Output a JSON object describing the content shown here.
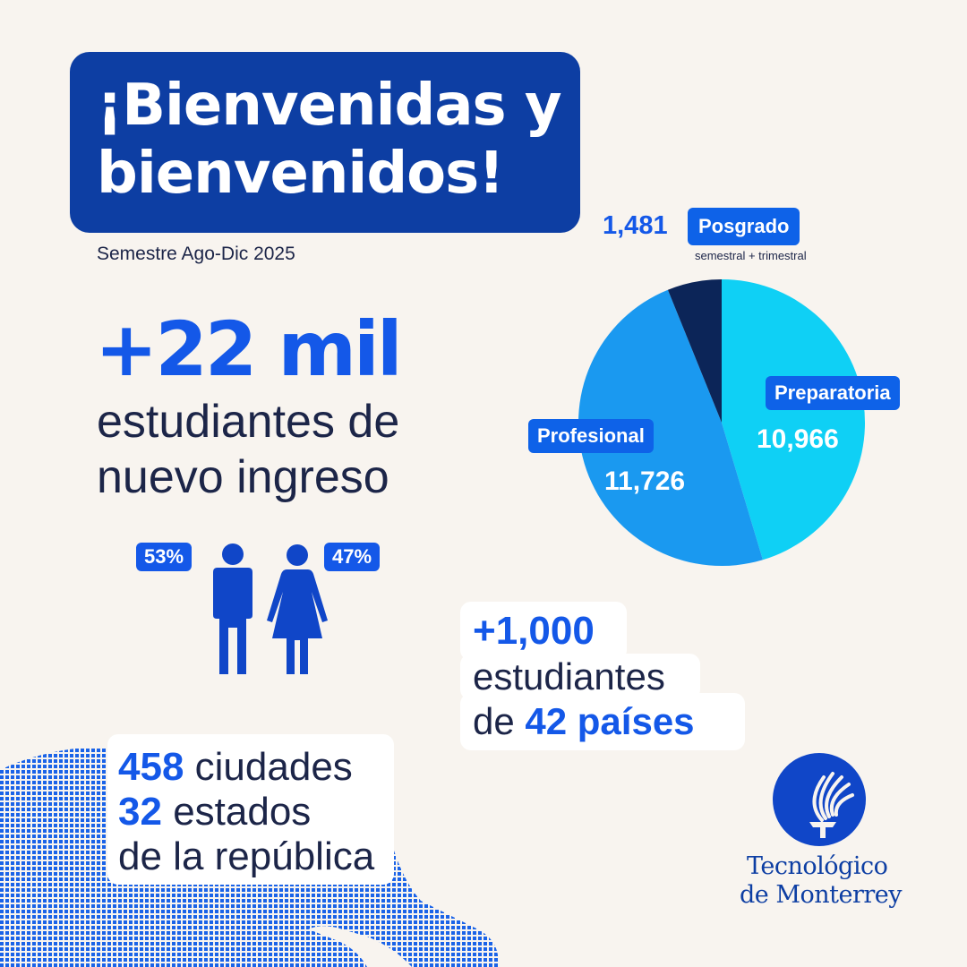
{
  "header": {
    "title_line1": "¡Bienvenidas y",
    "title_line2": "bienvenidos!",
    "subtitle": "Semestre Ago-Dic 2025"
  },
  "headline": {
    "number": "+22 mil",
    "desc_line1": "estudiantes de",
    "desc_line2": "nuevo ingreso"
  },
  "gender": {
    "men_pct": "53%",
    "women_pct": "47%",
    "men_icon": "man-icon",
    "women_icon": "woman-icon"
  },
  "pie": {
    "posgrado_value": "1,481",
    "posgrado_label": "Posgrado",
    "posgrado_note": "semestral + trimestral",
    "preparatoria_label": "Preparatoria",
    "preparatoria_value": "10,966",
    "profesional_label": "Profesional",
    "profesional_value": "11,726",
    "slices": [
      {
        "key": "preparatoria",
        "value": 10966,
        "color": "#0fd0f5"
      },
      {
        "key": "profesional",
        "value": 11726,
        "color": "#1a99f0"
      },
      {
        "key": "posgrado",
        "value": 1481,
        "color": "#0c2558"
      }
    ]
  },
  "international": {
    "number": "+1,000",
    "line1": "estudiantes",
    "line2_prefix": "de ",
    "line2_highlight": "42 países"
  },
  "geography": {
    "cities_num": "458",
    "cities_label": "ciudades",
    "states_num": "32",
    "states_label": "estados",
    "republic_line": "de la república",
    "map_icon": "americas-map-icon"
  },
  "logo": {
    "line1": "Tecnológico",
    "line2": "de Monterrey",
    "icon": "torch-logo-icon"
  },
  "colors": {
    "background": "#f8f4ef",
    "navy": "#0d3ea3",
    "accent": "#1458e8",
    "text": "#1c2548"
  }
}
